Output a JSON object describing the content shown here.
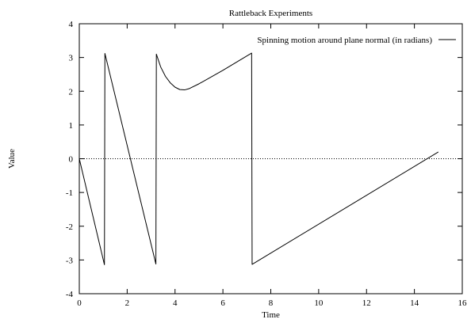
{
  "chart_data": {
    "type": "line",
    "title": "Rattleback Experiments",
    "xlabel": "Time",
    "ylabel": "Value",
    "xlim": [
      0,
      16
    ],
    "ylim": [
      -4,
      4
    ],
    "xticks": [
      0,
      2,
      4,
      6,
      8,
      10,
      12,
      14,
      16
    ],
    "yticks": [
      -4,
      -3,
      -2,
      -1,
      0,
      1,
      2,
      3,
      4
    ],
    "grid": false,
    "zero_line": true,
    "legend_position": "top-right",
    "series": [
      {
        "name": "Spinning motion around plane normal (in radians)",
        "color": "#000000",
        "points": [
          [
            0.0,
            0.0
          ],
          [
            1.05,
            -3.14
          ],
          [
            1.07,
            3.12
          ],
          [
            3.2,
            -3.12
          ],
          [
            3.22,
            3.1
          ],
          [
            3.4,
            2.72
          ],
          [
            3.6,
            2.44
          ],
          [
            3.8,
            2.25
          ],
          [
            4.0,
            2.12
          ],
          [
            4.2,
            2.05
          ],
          [
            4.4,
            2.04
          ],
          [
            4.6,
            2.08
          ],
          [
            5.0,
            2.22
          ],
          [
            6.0,
            2.62
          ],
          [
            7.2,
            3.13
          ],
          [
            7.22,
            -3.13
          ],
          [
            15.0,
            0.2
          ]
        ]
      }
    ]
  }
}
